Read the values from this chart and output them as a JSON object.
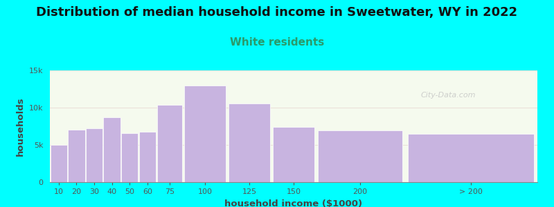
{
  "title": "Distribution of median household income in Sweetwater, WY in 2022",
  "subtitle": "White residents",
  "xlabel": "household income ($1000)",
  "ylabel": "households",
  "background_outer": "#00FFFF",
  "background_inner": "#f5faee",
  "bar_color": "#c8b4e0",
  "bar_edge_color": "#ffffff",
  "title_fontsize": 13,
  "subtitle_fontsize": 11,
  "subtitle_color": "#2a9a6a",
  "categories": [
    "10",
    "20",
    "30",
    "40",
    "50",
    "60",
    "75",
    "100",
    "125",
    "150",
    "200",
    "> 200"
  ],
  "values": [
    5000,
    7000,
    7200,
    8700,
    6600,
    6800,
    10400,
    13000,
    10600,
    7400,
    6900,
    6500
  ],
  "left_edges": [
    0,
    10,
    20,
    30,
    40,
    50,
    60,
    75,
    100,
    125,
    150,
    200
  ],
  "widths": [
    10,
    10,
    10,
    10,
    10,
    10,
    15,
    25,
    25,
    25,
    50,
    75
  ],
  "ylim": [
    0,
    15000
  ],
  "yticks": [
    0,
    5000,
    10000,
    15000
  ],
  "ytick_labels": [
    "0",
    "5k",
    "10k",
    "15k"
  ],
  "tick_label_color": "#555555",
  "axis_label_color": "#444444",
  "watermark": "City-Data.com"
}
